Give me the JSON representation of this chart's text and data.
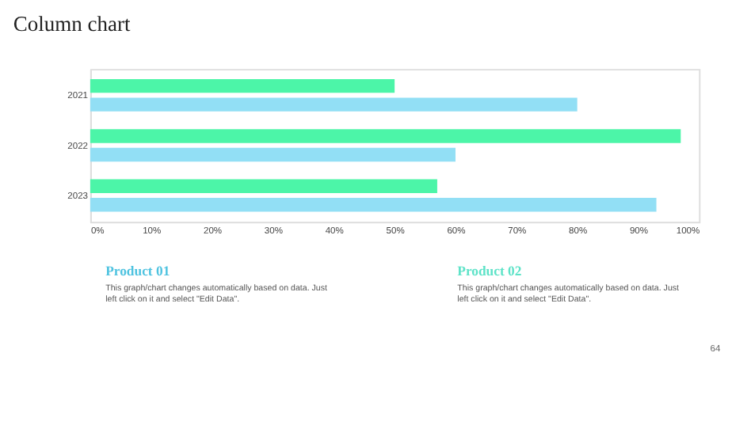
{
  "chart_data": {
    "type": "bar",
    "orientation": "horizontal",
    "title": "Column chart",
    "categories": [
      "2021",
      "2022",
      "2023"
    ],
    "series": [
      {
        "color": "#4cf5a8",
        "values": [
          50,
          97,
          57
        ]
      },
      {
        "color": "#92dff5",
        "values": [
          80,
          60,
          93
        ]
      }
    ],
    "xlim": [
      0,
      100
    ],
    "xticks": [
      {
        "value": 0,
        "label": "0%"
      },
      {
        "value": 10,
        "label": "10%"
      },
      {
        "value": 20,
        "label": "20%"
      },
      {
        "value": 30,
        "label": "30%"
      },
      {
        "value": 40,
        "label": "40%"
      },
      {
        "value": 50,
        "label": "50%"
      },
      {
        "value": 60,
        "label": "60%"
      },
      {
        "value": 70,
        "label": "70%"
      },
      {
        "value": 80,
        "label": "80%"
      },
      {
        "value": 90,
        "label": "90%"
      },
      {
        "value": 100,
        "label": "100%"
      }
    ],
    "grid": false,
    "legend": false,
    "annotations": [
      "Product 01",
      "This graph/chart changes automatically based on data. Just left click on it and select \"Edit Data\".",
      "Product 02",
      "This graph/chart changes automatically based on data. Just left click on it and select \"Edit Data\".",
      "64"
    ]
  }
}
